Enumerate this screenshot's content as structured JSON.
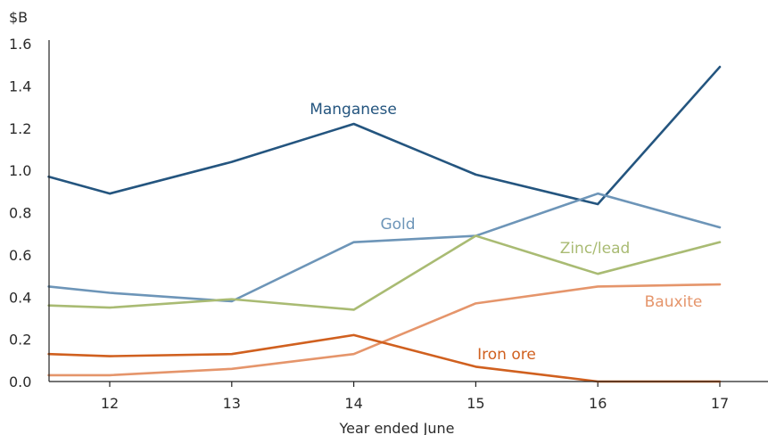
{
  "chart_data": {
    "type": "line",
    "y_unit": "$B",
    "xlabel": "Year ended June",
    "x_ticks": [
      "12",
      "13",
      "14",
      "15",
      "16",
      "17"
    ],
    "y_ticks": [
      "0.0",
      "0.2",
      "0.4",
      "0.6",
      "0.8",
      "1.0",
      "1.2",
      "1.4",
      "1.6"
    ],
    "ylim": [
      0,
      1.6
    ],
    "x": [
      11.5,
      12,
      13,
      14,
      15,
      16,
      17
    ],
    "series": [
      {
        "name": "Manganese",
        "color": "#24557f",
        "values": [
          0.97,
          0.89,
          1.04,
          1.22,
          0.98,
          0.84,
          1.49
        ]
      },
      {
        "name": "Gold",
        "color": "#6d95b8",
        "values": [
          0.45,
          0.42,
          0.38,
          0.66,
          0.69,
          0.89,
          0.73
        ]
      },
      {
        "name": "Zinc/lead",
        "color": "#a9bb73",
        "values": [
          0.36,
          0.35,
          0.39,
          0.34,
          0.69,
          0.51,
          0.66
        ]
      },
      {
        "name": "Bauxite",
        "color": "#e5956b",
        "values": [
          0.03,
          0.03,
          0.06,
          0.13,
          0.37,
          0.45,
          0.46
        ]
      },
      {
        "name": "Iron ore",
        "color": "#d0601f",
        "values": [
          0.13,
          0.12,
          0.13,
          0.22,
          0.07,
          0.0,
          0.0
        ]
      }
    ]
  }
}
